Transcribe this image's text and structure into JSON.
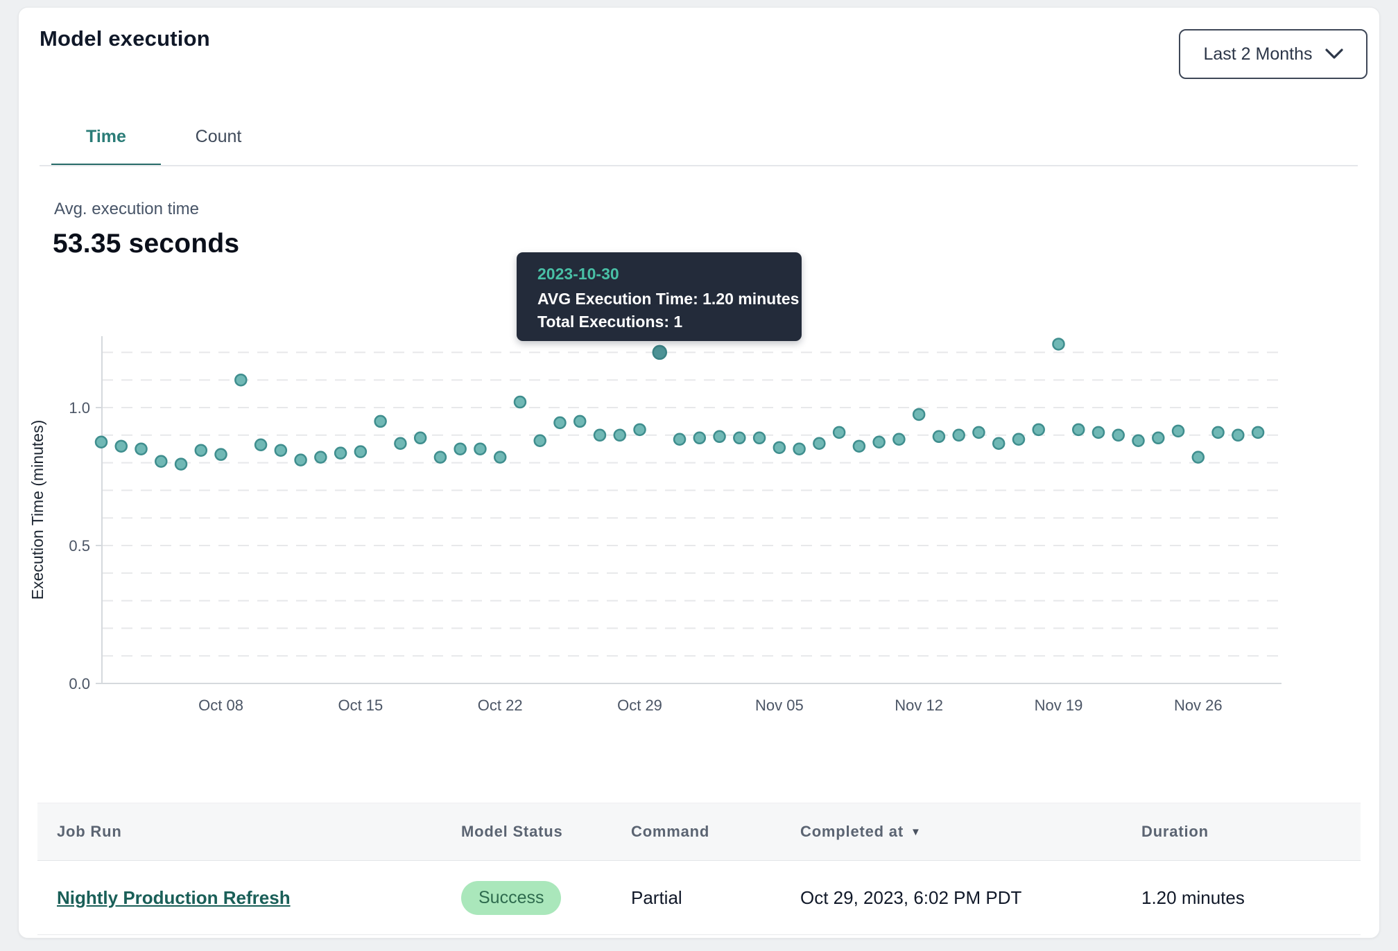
{
  "header": {
    "title": "Model execution",
    "range_selector": {
      "label": "Last 2 Months"
    }
  },
  "tabs": {
    "time": "Time",
    "count": "Count",
    "active": "Time"
  },
  "metric": {
    "label": "Avg. execution time",
    "value": "53.35 seconds"
  },
  "tooltip": {
    "date": "2023-10-30",
    "line1": "AVG Execution Time: 1.20 minutes",
    "line2": "Total Executions: 1"
  },
  "chart_data": {
    "type": "scatter",
    "title": "",
    "xlabel": "",
    "ylabel": "Execution Time (minutes)",
    "ylim": [
      0,
      1.25
    ],
    "yticks": [
      0.0,
      0.5,
      1.0
    ],
    "grid": true,
    "grid_step": 0.1,
    "x_tick_labels": [
      {
        "label": "Oct 08",
        "index": 6
      },
      {
        "label": "Oct 15",
        "index": 13
      },
      {
        "label": "Oct 22",
        "index": 20
      },
      {
        "label": "Oct 29",
        "index": 27
      },
      {
        "label": "Nov 05",
        "index": 34
      },
      {
        "label": "Nov 12",
        "index": 41
      },
      {
        "label": "Nov 19",
        "index": 48
      },
      {
        "label": "Nov 26",
        "index": 55
      }
    ],
    "values": [
      0.875,
      0.86,
      0.85,
      0.805,
      0.795,
      0.845,
      0.83,
      1.1,
      0.865,
      0.845,
      0.81,
      0.82,
      0.835,
      0.84,
      0.95,
      0.87,
      0.89,
      0.82,
      0.85,
      0.85,
      0.82,
      1.02,
      0.88,
      0.945,
      0.95,
      0.9,
      0.9,
      0.92,
      1.2,
      0.885,
      0.89,
      0.895,
      0.89,
      0.89,
      0.855,
      0.85,
      0.87,
      0.91,
      0.86,
      0.875,
      0.885,
      0.975,
      0.895,
      0.9,
      0.91,
      0.87,
      0.885,
      0.92,
      1.23,
      0.92,
      0.91,
      0.9,
      0.88,
      0.89,
      0.915,
      0.82,
      0.91,
      0.9,
      0.91
    ],
    "highlight_index": 28,
    "highlight_value_label": "1.20 minutes",
    "colors": {
      "point_fill": "#70b8b5",
      "point_stroke": "#3f8e8e",
      "highlight_fill": "#4d9295",
      "highlight_stroke": "#3a8284",
      "grid": "#e7e8ea",
      "axis": "#d5d9dd",
      "tick_text": "#4b5565",
      "axis_label_text": "#1b2430"
    }
  },
  "table": {
    "columns": [
      {
        "label": "Job Run"
      },
      {
        "label": "Model Status"
      },
      {
        "label": "Command"
      },
      {
        "label": "Completed at",
        "sorted": "desc"
      },
      {
        "label": "Duration"
      }
    ],
    "rows": [
      {
        "job_run": "Nightly Production Refresh",
        "model_status": "Success",
        "command": "Partial",
        "completed_at": "Oct 29, 2023, 6:02 PM PDT",
        "duration": "1.20 minutes"
      }
    ],
    "status_colors": {
      "success_bg": "#aae7bb",
      "success_text": "#2e6b4e"
    }
  }
}
